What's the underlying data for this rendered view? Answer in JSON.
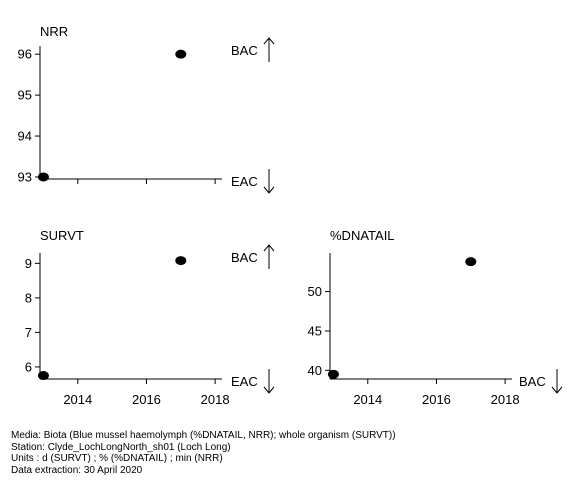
{
  "chart_data": [
    {
      "type": "scatter",
      "title": "NRR",
      "x": [
        2013,
        2017
      ],
      "y": [
        93,
        96
      ],
      "xlim": [
        2012.9,
        2018.2
      ],
      "ylim": [
        92.95,
        96.2
      ],
      "yticks": [
        93,
        94,
        95,
        96
      ],
      "xticks": [
        2014,
        2016,
        2018
      ],
      "xtick_labels_visible": false,
      "upper_label": "BAC",
      "upper_arrow": "up",
      "lower_label": "EAC",
      "lower_arrow": "down"
    },
    {
      "type": "scatter",
      "title": "SURVT",
      "x": [
        2013,
        2017
      ],
      "y": [
        5.75,
        9.08
      ],
      "xlim": [
        2012.9,
        2018.2
      ],
      "ylim": [
        5.65,
        9.3
      ],
      "yticks": [
        6,
        7,
        8,
        9
      ],
      "xticks": [
        2014,
        2016,
        2018
      ],
      "xtick_labels_visible": true,
      "upper_label": "BAC",
      "upper_arrow": "up",
      "lower_label": "EAC",
      "lower_arrow": "down"
    },
    {
      "type": "scatter",
      "title": "%DNATAIL",
      "x": [
        2013,
        2017
      ],
      "y": [
        39.5,
        53.8
      ],
      "xlim": [
        2012.9,
        2018.2
      ],
      "ylim": [
        38.9,
        54.9
      ],
      "yticks": [
        40,
        45,
        50
      ],
      "xticks": [
        2014,
        2016,
        2018
      ],
      "xtick_labels_visible": true,
      "lower_label": "BAC",
      "lower_arrow": "down"
    }
  ],
  "footer": {
    "media": "Media: Biota (Blue mussel haemolymph (%DNATAIL, NRR); whole organism (SURVT))",
    "station": "Station: Clyde_LochLongNorth_sh01 (Loch Long)",
    "units": "Units : d (SURVT) ;  % (%DNATAIL) ;  min (NRR)",
    "extraction": "Data extraction: 30 April 2020"
  }
}
